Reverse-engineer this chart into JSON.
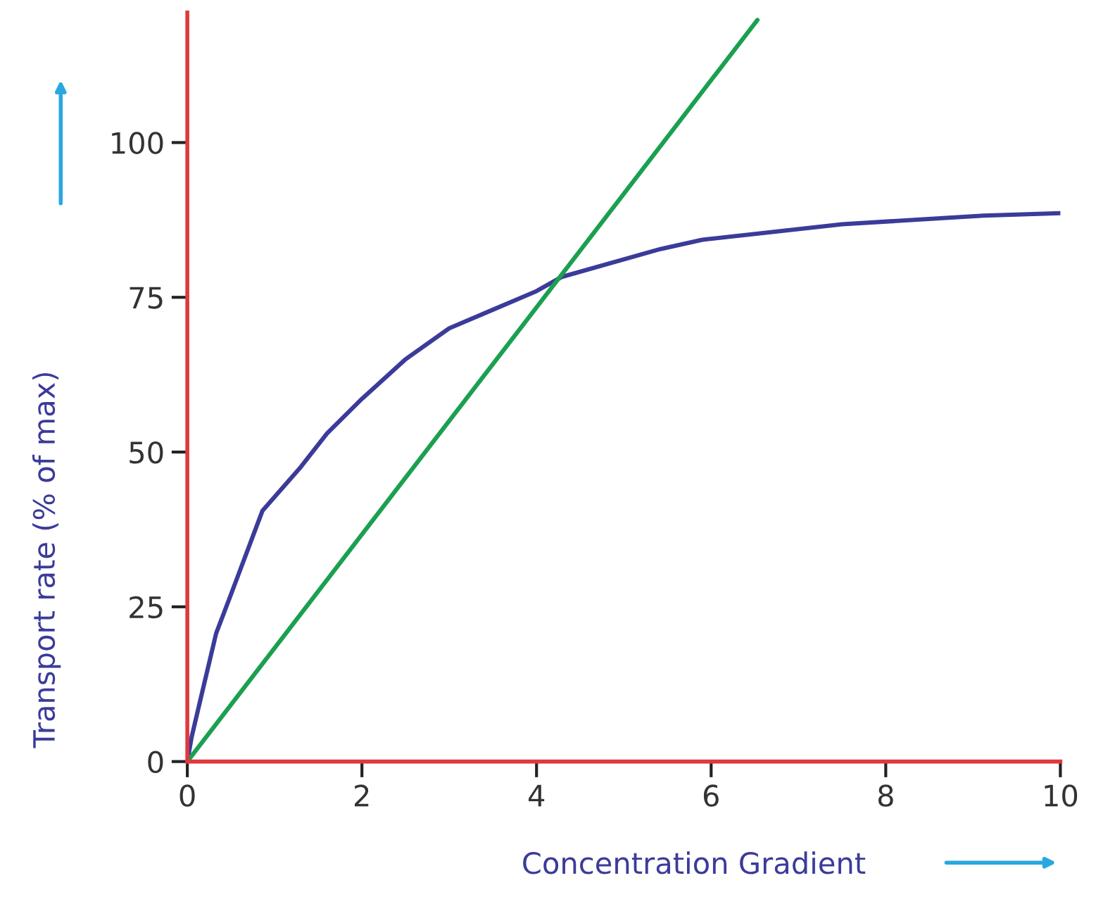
{
  "chart_data": {
    "type": "line",
    "xlabel": "Concentration Gradient",
    "ylabel": "Transport rate (% of max)",
    "xlim": [
      0,
      10
    ],
    "ylim": [
      0,
      121
    ],
    "xticks": [
      0,
      2,
      4,
      6,
      8,
      10
    ],
    "yticks": [
      0,
      25,
      50,
      75,
      100
    ],
    "marker": "none",
    "line_style": "solid",
    "series": [
      {
        "color": "#3b3b9a",
        "x": [
          0,
          0.05,
          0.15,
          0.33,
          0.5,
          0.86,
          1.3,
          1.6,
          2,
          2.5,
          3,
          3.5,
          4,
          4.29,
          5.42,
          5.9,
          7.5,
          9.12,
          10
        ],
        "values": [
          0,
          4,
          10,
          20.7,
          27,
          40.5,
          47.6,
          53,
          58.6,
          65,
          70,
          73,
          76,
          78.3,
          82.8,
          84.3,
          86.8,
          88.2,
          88.6
        ]
      },
      {
        "color": "#1aa050",
        "x": [
          0,
          6.53
        ],
        "values": [
          0,
          119.8
        ]
      }
    ]
  }
}
